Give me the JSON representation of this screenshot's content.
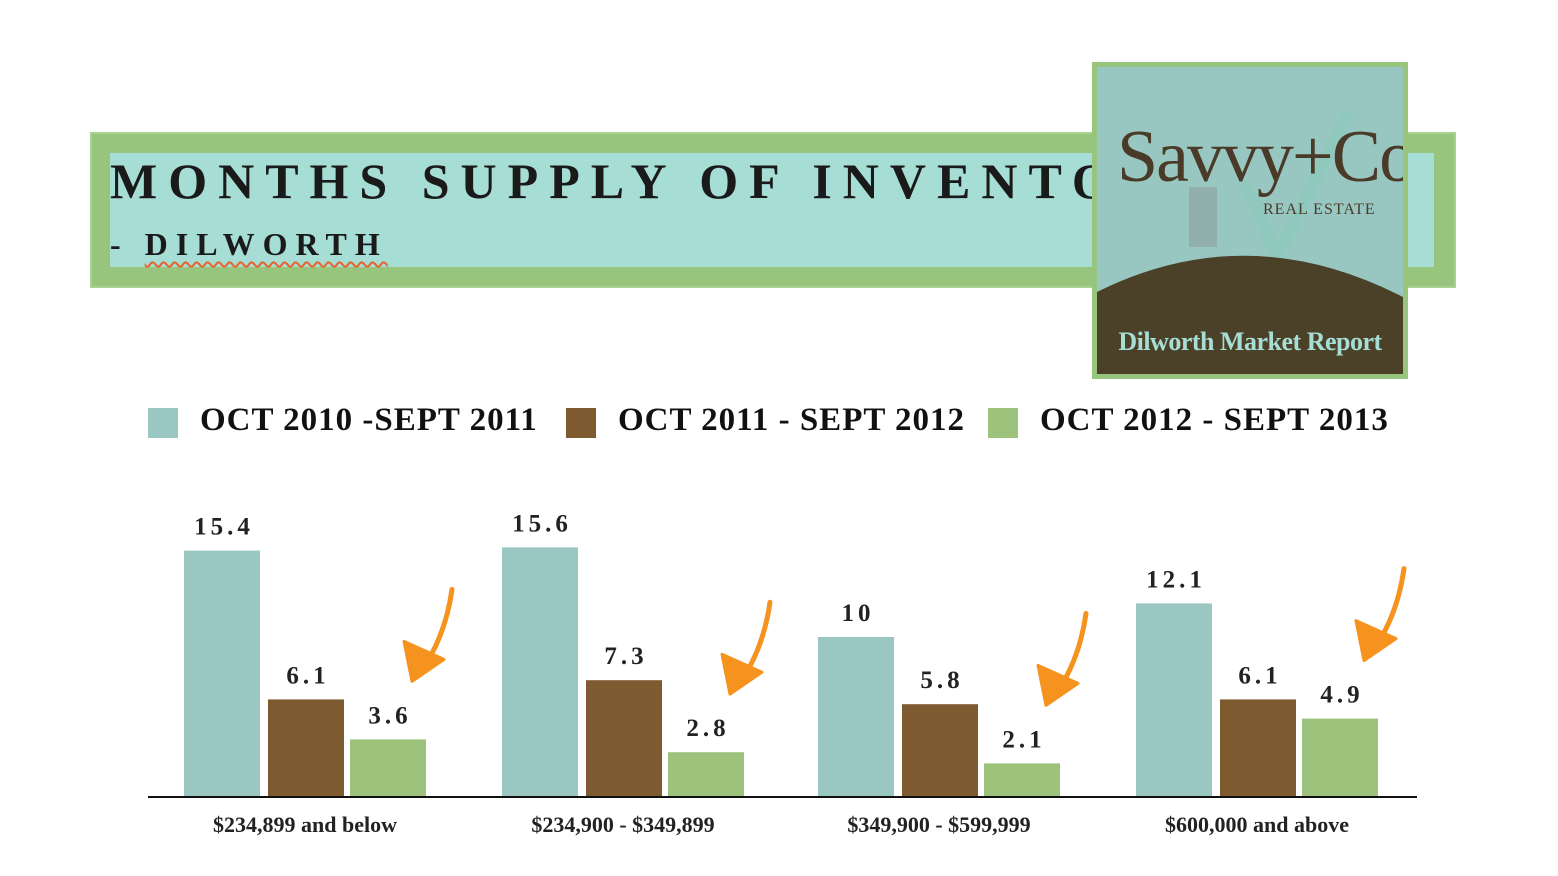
{
  "header": {
    "title": "MONTHS SUPPLY OF INVENTORY",
    "subtitle_prefix": "- ",
    "subtitle": "DILWORTH"
  },
  "logo": {
    "brand": "Savvy+Co",
    "tagline": "REAL ESTATE",
    "report": "Dilworth Market Report"
  },
  "colors": {
    "teal": "#9bc7c2",
    "brown": "#7d5a30",
    "green": "#9dc27c",
    "arrow": "#f5931e"
  },
  "chart_data": {
    "type": "bar",
    "categories": [
      "$234,899 and below",
      "$234,900 - $349,899",
      "$349,900 - $599,999",
      "$600,000 and above"
    ],
    "series": [
      {
        "name": "OCT 2010 -SEPT 2011",
        "color": "#9bc7c2",
        "values": [
          15.4,
          15.6,
          10,
          12.1
        ]
      },
      {
        "name": "OCT 2011 - SEPT 2012",
        "color": "#7d5a30",
        "values": [
          6.1,
          7.3,
          5.8,
          6.1
        ]
      },
      {
        "name": "OCT 2012 - SEPT 2013",
        "color": "#9dc27c",
        "values": [
          3.6,
          2.8,
          2.1,
          4.9
        ]
      }
    ],
    "value_labels": [
      [
        "15.4",
        "15.6",
        "10",
        "12.1"
      ],
      [
        "6.1",
        "7.3",
        "5.8",
        "6.1"
      ],
      [
        "3.6",
        "2.8",
        "2.1",
        "4.9"
      ]
    ],
    "ylim": [
      0,
      16
    ],
    "legend": "top",
    "grid": false,
    "annotations": "downward arrow beside each third-series bar"
  }
}
